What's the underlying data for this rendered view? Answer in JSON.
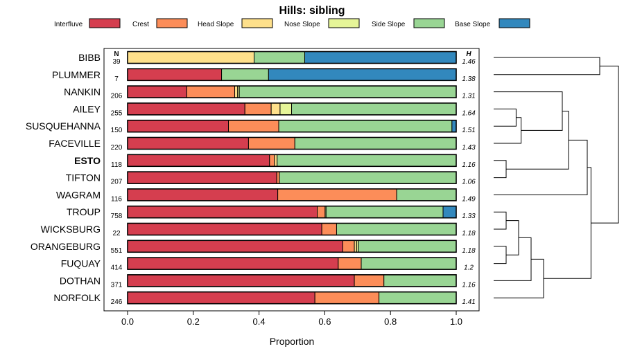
{
  "chart_data": {
    "type": "bar",
    "subtype": "stacked-horizontal-proportion",
    "title": "Hills: sibling",
    "xlabel": "Proportion",
    "ylabel": "",
    "xlim": [
      0,
      1
    ],
    "x_ticks": [
      0,
      0.2,
      0.4,
      0.6,
      0.8,
      1
    ],
    "x_tick_labels": [
      "0.0",
      "0.2",
      "0.4",
      "0.6",
      "0.8",
      "1.0"
    ],
    "n_header": "N",
    "h_header": "H",
    "highlighted_category": "ESTO",
    "legend": [
      {
        "name": "Interfluve",
        "color": "#D53E4F"
      },
      {
        "name": "Crest",
        "color": "#FC8D59"
      },
      {
        "name": "Head Slope",
        "color": "#FEE08B"
      },
      {
        "name": "Nose Slope",
        "color": "#E6F598"
      },
      {
        "name": "Side Slope",
        "color": "#99D594"
      },
      {
        "name": "Base Slope",
        "color": "#3288BD"
      }
    ],
    "categories": [
      "BIBB",
      "PLUMMER",
      "NANKIN",
      "AILEY",
      "SUSQUEHANNA",
      "FACEVILLE",
      "ESTO",
      "TIFTON",
      "WAGRAM",
      "TROUP",
      "WICKSBURG",
      "ORANGEBURG",
      "FUQUAY",
      "DOTHAN",
      "NORFOLK"
    ],
    "n": [
      "39",
      "7",
      "206",
      "255",
      "150",
      "220",
      "118",
      "207",
      "116",
      "758",
      "22",
      "551",
      "414",
      "371",
      "246"
    ],
    "h": [
      "1.46",
      "1.38",
      "1.31",
      "1.64",
      "1.51",
      "1.43",
      "1.16",
      "1.06",
      "1.49",
      "1.33",
      "1.18",
      "1.18",
      "1.2",
      "1.16",
      "1.41"
    ],
    "series": [
      {
        "name": "Interfluve",
        "values": [
          0,
          0.286,
          0.18,
          0.357,
          0.307,
          0.368,
          0.432,
          0.454,
          0.457,
          0.577,
          0.591,
          0.655,
          0.641,
          0.69,
          0.57
        ]
      },
      {
        "name": "Crest",
        "values": [
          0,
          0,
          0.146,
          0.08,
          0.153,
          0.141,
          0.015,
          0.008,
          0.362,
          0.024,
          0.045,
          0.035,
          0.07,
          0.09,
          0.195
        ]
      },
      {
        "name": "Head Slope",
        "values": [
          0.385,
          0,
          0.009,
          0.027,
          0,
          0,
          0.008,
          0,
          0,
          0,
          0,
          0.007,
          0,
          0,
          0
        ]
      },
      {
        "name": "Nose Slope",
        "values": [
          0,
          0,
          0.005,
          0.035,
          0,
          0,
          0,
          0,
          0,
          0.003,
          0,
          0.005,
          0,
          0,
          0
        ]
      },
      {
        "name": "Side Slope",
        "values": [
          0.154,
          0.143,
          0.66,
          0.501,
          0.527,
          0.491,
          0.545,
          0.538,
          0.181,
          0.356,
          0.364,
          0.298,
          0.289,
          0.22,
          0.235
        ]
      },
      {
        "name": "Base Slope",
        "values": [
          0.461,
          0.571,
          0,
          0,
          0.013,
          0,
          0,
          0,
          0,
          0.04,
          0,
          0,
          0,
          0,
          0
        ]
      }
    ],
    "dendrogram": {
      "method": "hierarchical",
      "merges": [
        {
          "a": "BIBB",
          "b": "PLUMMER",
          "height": 0.85
        },
        {
          "a": "AILEY",
          "b": "SUSQUEHANNA",
          "height": 0.18
        },
        {
          "a": "@1",
          "b": "FACEVILLE",
          "height": 0.22
        },
        {
          "a": "NANKIN",
          "b": "@2",
          "height": 0.55
        },
        {
          "a": "ESTO",
          "b": "TIFTON",
          "height": 0.1
        },
        {
          "a": "@3",
          "b": "@4",
          "height": 0.6
        },
        {
          "a": "WAGRAM",
          "b": "@5",
          "height": 0.75
        },
        {
          "a": "TROUP",
          "b": "WICKSBURG",
          "height": 0.1
        },
        {
          "a": "ORANGEBURG",
          "b": "FUQUAY",
          "height": 0.1
        },
        {
          "a": "@7",
          "b": "@8",
          "height": 0.2
        },
        {
          "a": "@9",
          "b": "DOTHAN",
          "height": 0.3
        },
        {
          "a": "@10",
          "b": "NORFOLK",
          "height": 0.4
        },
        {
          "a": "@6",
          "b": "@11",
          "height": 0.78
        },
        {
          "a": "@0",
          "b": "@12",
          "height": 1.0
        }
      ]
    }
  }
}
